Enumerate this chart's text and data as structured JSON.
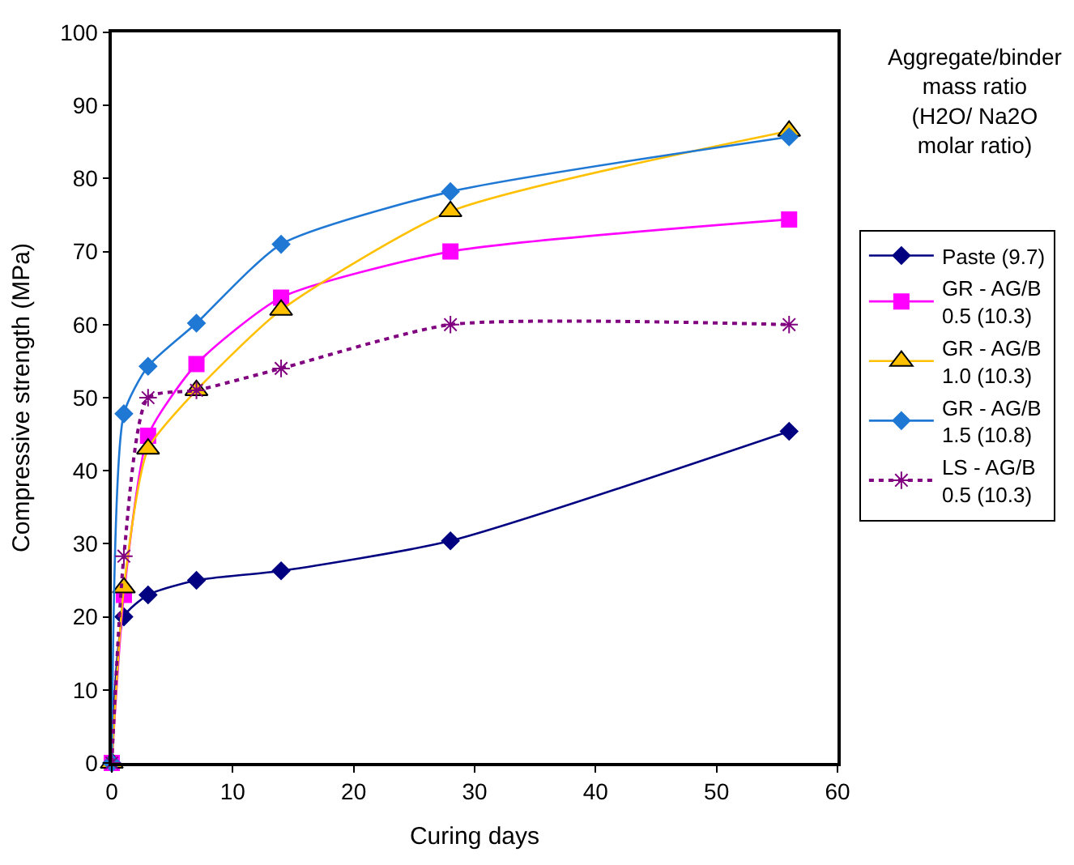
{
  "chart_data": {
    "type": "line",
    "xlabel": "Curing days",
    "ylabel": "Compressive strength (MPa)",
    "legend_title": "Aggregate/binder mass ratio (H2O/ Na2O molar ratio)",
    "x": [
      0,
      1,
      3,
      7,
      14,
      28,
      56
    ],
    "series": [
      {
        "name": "Paste (9.7)",
        "color": "#000080",
        "marker": "diamond",
        "line_style": "solid",
        "values": [
          0,
          20,
          23,
          25,
          26.3,
          30.4,
          45.4
        ]
      },
      {
        "name": "GR - AG/B 0.5 (10.3)",
        "color": "#ff00ff",
        "marker": "square",
        "line_style": "solid",
        "values": [
          0,
          23,
          44.8,
          54.6,
          63.7,
          70,
          74.4
        ]
      },
      {
        "name": "GR - AG/B 1.0 (10.3)",
        "color": "#ffc000",
        "marker": "triangle",
        "line_style": "solid",
        "values": [
          0,
          24,
          43,
          51,
          62,
          75.5,
          86.5
        ]
      },
      {
        "name": "GR - AG/B 1.5 (10.8)",
        "color": "#1f78d4",
        "marker": "diamond",
        "line_style": "solid",
        "values": [
          0,
          47.8,
          54.3,
          60.2,
          71,
          78.2,
          85.7
        ]
      },
      {
        "name": "LS - AG/B 0.5 (10.3)",
        "color": "#800080",
        "marker": "cross",
        "line_style": "dotted",
        "values": [
          0,
          28.3,
          50,
          51,
          54,
          60,
          60
        ]
      }
    ],
    "xlim": [
      0,
      60
    ],
    "xticks": [
      0,
      10,
      20,
      30,
      40,
      50,
      60
    ],
    "ylim": [
      0,
      100
    ],
    "yticks": [
      0,
      10,
      20,
      30,
      40,
      50,
      60,
      70,
      80,
      90,
      100
    ],
    "legend": "right"
  }
}
